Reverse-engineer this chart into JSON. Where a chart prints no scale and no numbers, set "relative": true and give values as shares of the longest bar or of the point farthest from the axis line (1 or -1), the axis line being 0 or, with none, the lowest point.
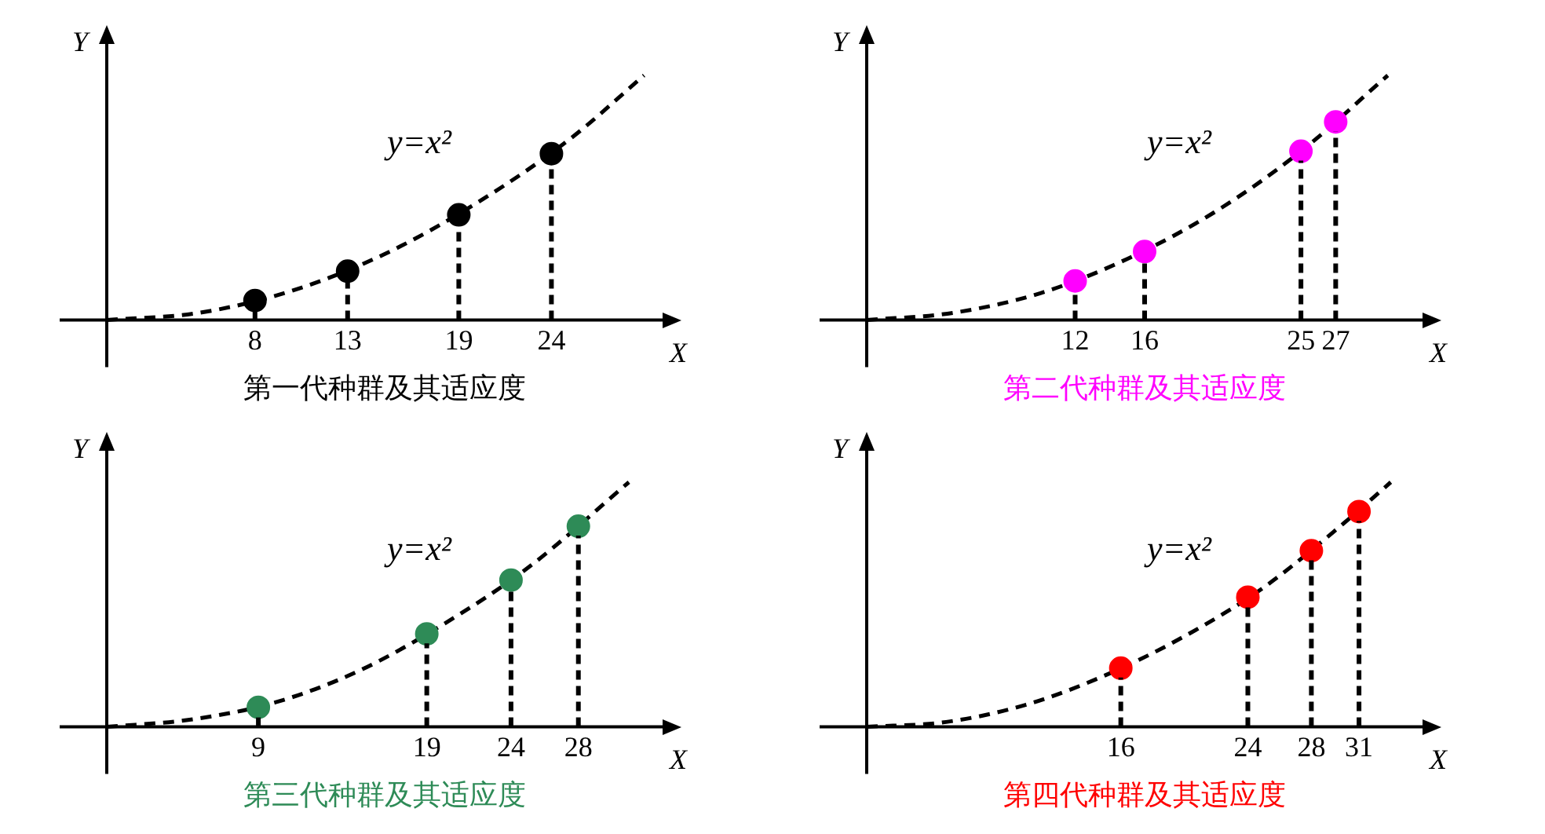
{
  "chart_data": [
    {
      "type": "lollipop",
      "title": "第一代种群及其适应度",
      "xlabel": "X",
      "ylabel": "Y",
      "relative": true,
      "x": [
        8,
        13,
        19,
        24
      ],
      "xlim": [
        0,
        30
      ],
      "xticks": [
        8,
        13,
        19,
        24
      ],
      "annotations": [
        "y=x²"
      ],
      "series": [
        {
          "color": "#000000",
          "values": [
            0.08,
            0.2,
            0.43,
            0.68
          ]
        },
        {
          "type": "line",
          "color": "#000000",
          "line_style": "dashed",
          "marker": "none",
          "x": [
            0,
            5,
            10,
            15,
            20,
            25,
            29
          ],
          "values": [
            0,
            0.03,
            0.12,
            0.27,
            0.48,
            0.74,
            1
          ]
        }
      ]
    },
    {
      "type": "lollipop",
      "title": "第二代种群及其适应度",
      "xlabel": "X",
      "ylabel": "Y",
      "relative": true,
      "x": [
        12,
        16,
        25,
        27
      ],
      "xlim": [
        0,
        32
      ],
      "xticks": [
        12,
        16,
        25,
        27
      ],
      "annotations": [
        "y=x²"
      ],
      "series": [
        {
          "color": "#ff00ff",
          "values": [
            0.16,
            0.28,
            0.69,
            0.81
          ]
        },
        {
          "type": "line",
          "color": "#000000",
          "line_style": "dashed",
          "marker": "none",
          "x": [
            0,
            5,
            10,
            15,
            20,
            25,
            30
          ],
          "values": [
            0,
            0.03,
            0.11,
            0.25,
            0.44,
            0.69,
            1
          ]
        }
      ]
    },
    {
      "type": "lollipop",
      "title": "第三代种群及其适应度",
      "xlabel": "X",
      "ylabel": "Y",
      "relative": true,
      "x": [
        9,
        19,
        24,
        28
      ],
      "xlim": [
        0,
        33
      ],
      "xticks": [
        9,
        19,
        24,
        28
      ],
      "annotations": [
        "y=x²"
      ],
      "series": [
        {
          "color": "#2e8b57",
          "values": [
            0.08,
            0.38,
            0.6,
            0.82
          ]
        },
        {
          "type": "line",
          "color": "#000000",
          "line_style": "dashed",
          "marker": "none",
          "x": [
            0,
            5,
            10,
            15,
            20,
            25,
            31
          ],
          "values": [
            0,
            0.03,
            0.1,
            0.23,
            0.42,
            0.65,
            1
          ]
        }
      ]
    },
    {
      "type": "lollipop",
      "title": "第四代种群及其适应度",
      "xlabel": "X",
      "ylabel": "Y",
      "relative": true,
      "x": [
        16,
        24,
        28,
        31
      ],
      "xlim": [
        0,
        35
      ],
      "xticks": [
        16,
        24,
        28,
        31
      ],
      "annotations": [
        "y=x²"
      ],
      "series": [
        {
          "color": "#ff0000",
          "values": [
            0.24,
            0.53,
            0.72,
            0.88
          ]
        },
        {
          "type": "line",
          "color": "#000000",
          "line_style": "dashed",
          "marker": "none",
          "x": [
            0,
            5,
            10,
            15,
            20,
            25,
            30,
            33
          ],
          "values": [
            0,
            0.02,
            0.09,
            0.21,
            0.37,
            0.57,
            0.83,
            1
          ]
        }
      ]
    }
  ]
}
